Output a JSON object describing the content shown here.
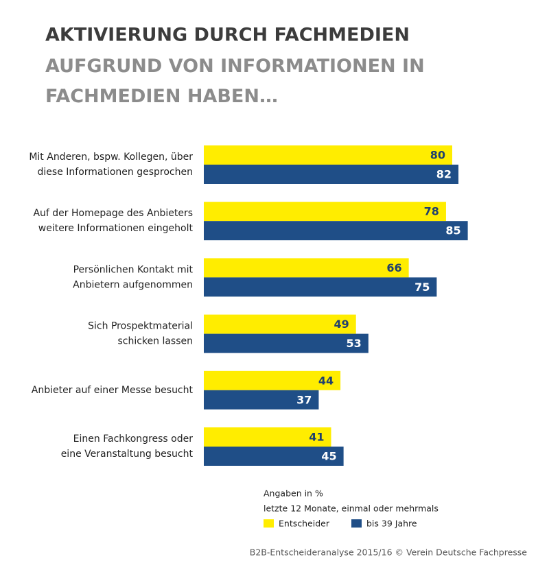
{
  "chart_data": {
    "type": "bar",
    "orientation": "horizontal",
    "title": "AKTIVIERUNG DURCH FACHMEDIEN",
    "subtitle": "AUFGRUND VON INFORMATIONEN IN\nFACHMEDIEN HABEN…",
    "categories": [
      "Mit Anderen, bspw. Kollegen, über\ndiese Informationen gesprochen",
      "Auf der Homepage des Anbieters\nweitere Informationen eingeholt",
      "Persönlichen Kontakt mit\nAnbietern aufgenommen",
      "Sich Prospektmaterial\nschicken lassen",
      "Anbieter auf einer Messe besucht",
      "Einen Fachkongress oder\neine Veranstaltung besucht"
    ],
    "series": [
      {
        "name": "Entscheider",
        "color": "#ffed00",
        "label_color": "#1f3f6e",
        "values": [
          80,
          78,
          66,
          49,
          44,
          41
        ]
      },
      {
        "name": "bis 39 Jahre",
        "color": "#1f4e87",
        "label_color": "#ffffff",
        "values": [
          82,
          85,
          75,
          53,
          37,
          45
        ]
      }
    ],
    "notes": [
      "Angaben in %",
      "letzte 12 Monate, einmal oder mehrmals"
    ],
    "source": "B2B-Entscheideranalyse 2015/16 © Verein Deutsche Fachpresse"
  }
}
